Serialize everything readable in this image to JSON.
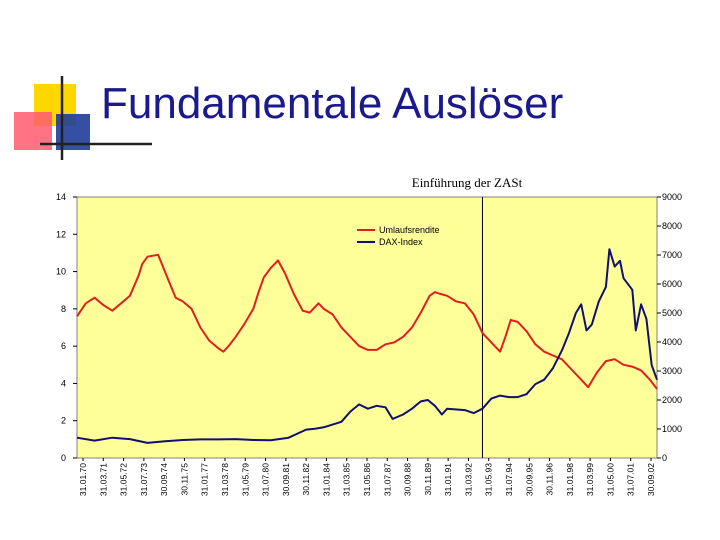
{
  "slide": {
    "title": "Fundamentale Auslöser",
    "colors": {
      "title": "#1a1a8c",
      "plot_background": "#ffff99",
      "logo_yellow": "#ffd700",
      "logo_red": "#ff5a6e",
      "logo_blue": "#1f3d99"
    }
  },
  "chart_data": {
    "type": "line",
    "title": "",
    "annotations": [
      {
        "text": "Einführung der ZASt",
        "x": "31.01.93"
      }
    ],
    "legend": {
      "placement": "top-center",
      "entries": [
        "Umlaufsrendite",
        "DAX-Index"
      ]
    },
    "grid": false,
    "x_axis": {
      "tick_labels": [
        "31.01.70",
        "31.03.71",
        "31.05.72",
        "31.07.73",
        "30.09.74",
        "30.11.75",
        "31.01.77",
        "31.03.78",
        "31.05.79",
        "31.07.80",
        "30.09.81",
        "30.11.82",
        "31.01.84",
        "31.03.85",
        "31.05.86",
        "31.07.87",
        "30.09.88",
        "30.11.89",
        "31.01.91",
        "31.03.92",
        "31.05.93",
        "31.07.94",
        "30.09.95",
        "30.11.96",
        "31.01.98",
        "31.03.99",
        "31.05.00",
        "31.07.01",
        "30.09.02"
      ],
      "range": [
        "1970-01",
        "2002-12"
      ]
    },
    "y_left": {
      "ticks": [
        "0",
        "2",
        "4",
        "6",
        "8",
        "10",
        "12",
        "14"
      ],
      "ylim": [
        0,
        14
      ]
    },
    "y_right": {
      "ticks": [
        "0",
        "1000",
        "2000",
        "3000",
        "4000",
        "5000",
        "6000",
        "7000",
        "8000",
        "9000"
      ],
      "ylim": [
        0,
        9000
      ]
    },
    "series": [
      {
        "name": "Umlaufsrendite",
        "axis": "left",
        "color": "#e02020",
        "x": [
          1970.0,
          1970.5,
          1971.0,
          1971.5,
          1972.0,
          1972.5,
          1973.0,
          1973.5,
          1973.7,
          1974.0,
          1974.6,
          1975.2,
          1975.6,
          1976.0,
          1976.5,
          1977.0,
          1977.5,
          1978.0,
          1978.3,
          1978.6,
          1979.0,
          1979.5,
          1980.0,
          1980.3,
          1980.6,
          1981.0,
          1981.4,
          1981.8,
          1982.3,
          1982.8,
          1983.2,
          1983.7,
          1984.0,
          1984.5,
          1985.0,
          1985.5,
          1986.0,
          1986.5,
          1987.0,
          1987.5,
          1988.0,
          1988.5,
          1989.0,
          1989.5,
          1990.0,
          1990.3,
          1990.6,
          1991.0,
          1991.5,
          1992.0,
          1992.5,
          1993.0,
          1993.5,
          1994.0,
          1994.3,
          1994.6,
          1995.0,
          1995.5,
          1996.0,
          1996.5,
          1997.0,
          1997.5,
          1998.0,
          1998.5,
          1999.0,
          1999.5,
          2000.0,
          2000.5,
          2001.0,
          2001.5,
          2002.0,
          2002.5,
          2002.9
        ],
        "values": [
          7.6,
          8.3,
          8.6,
          8.2,
          7.9,
          8.3,
          8.7,
          9.8,
          10.4,
          10.8,
          10.9,
          9.5,
          8.6,
          8.4,
          8.0,
          7.0,
          6.3,
          5.9,
          5.7,
          6.0,
          6.5,
          7.2,
          8.0,
          8.9,
          9.7,
          10.2,
          10.6,
          9.9,
          8.8,
          7.9,
          7.8,
          8.3,
          8.0,
          7.7,
          7.0,
          6.5,
          6.0,
          5.8,
          5.8,
          6.1,
          6.2,
          6.5,
          7.0,
          7.8,
          8.7,
          8.9,
          8.8,
          8.7,
          8.4,
          8.3,
          7.7,
          6.7,
          6.2,
          5.7,
          6.5,
          7.4,
          7.3,
          6.8,
          6.1,
          5.7,
          5.5,
          5.3,
          4.8,
          4.3,
          3.8,
          4.6,
          5.2,
          5.3,
          5.0,
          4.9,
          4.7,
          4.2,
          3.7
        ]
      },
      {
        "name": "DAX-Index",
        "axis": "right",
        "color": "#101070",
        "x": [
          1970.0,
          1971.0,
          1972.0,
          1973.0,
          1974.0,
          1975.0,
          1976.0,
          1977.0,
          1978.0,
          1979.0,
          1980.0,
          1981.0,
          1982.0,
          1983.0,
          1983.5,
          1984.0,
          1985.0,
          1985.5,
          1986.0,
          1986.5,
          1987.0,
          1987.5,
          1987.9,
          1988.5,
          1989.0,
          1989.5,
          1989.9,
          1990.3,
          1990.7,
          1991.0,
          1992.0,
          1992.5,
          1993.0,
          1993.5,
          1994.0,
          1994.5,
          1995.0,
          1995.5,
          1996.0,
          1996.5,
          1997.0,
          1997.5,
          1997.9,
          1998.3,
          1998.6,
          1998.9,
          1999.2,
          1999.6,
          2000.0,
          2000.2,
          2000.5,
          2000.8,
          2001.0,
          2001.5,
          2001.7,
          2002.0,
          2002.3,
          2002.6,
          2002.9
        ],
        "values": [
          700,
          600,
          700,
          650,
          520,
          580,
          620,
          640,
          640,
          650,
          620,
          610,
          700,
          980,
          1010,
          1060,
          1250,
          1600,
          1850,
          1700,
          1800,
          1750,
          1350,
          1500,
          1700,
          1950,
          2000,
          1800,
          1500,
          1700,
          1650,
          1550,
          1700,
          2050,
          2150,
          2100,
          2100,
          2200,
          2550,
          2700,
          3100,
          3700,
          4300,
          5000,
          5300,
          4400,
          4600,
          5400,
          5900,
          7200,
          6600,
          6800,
          6200,
          5800,
          4400,
          5300,
          4800,
          3200,
          2700
        ]
      }
    ]
  }
}
